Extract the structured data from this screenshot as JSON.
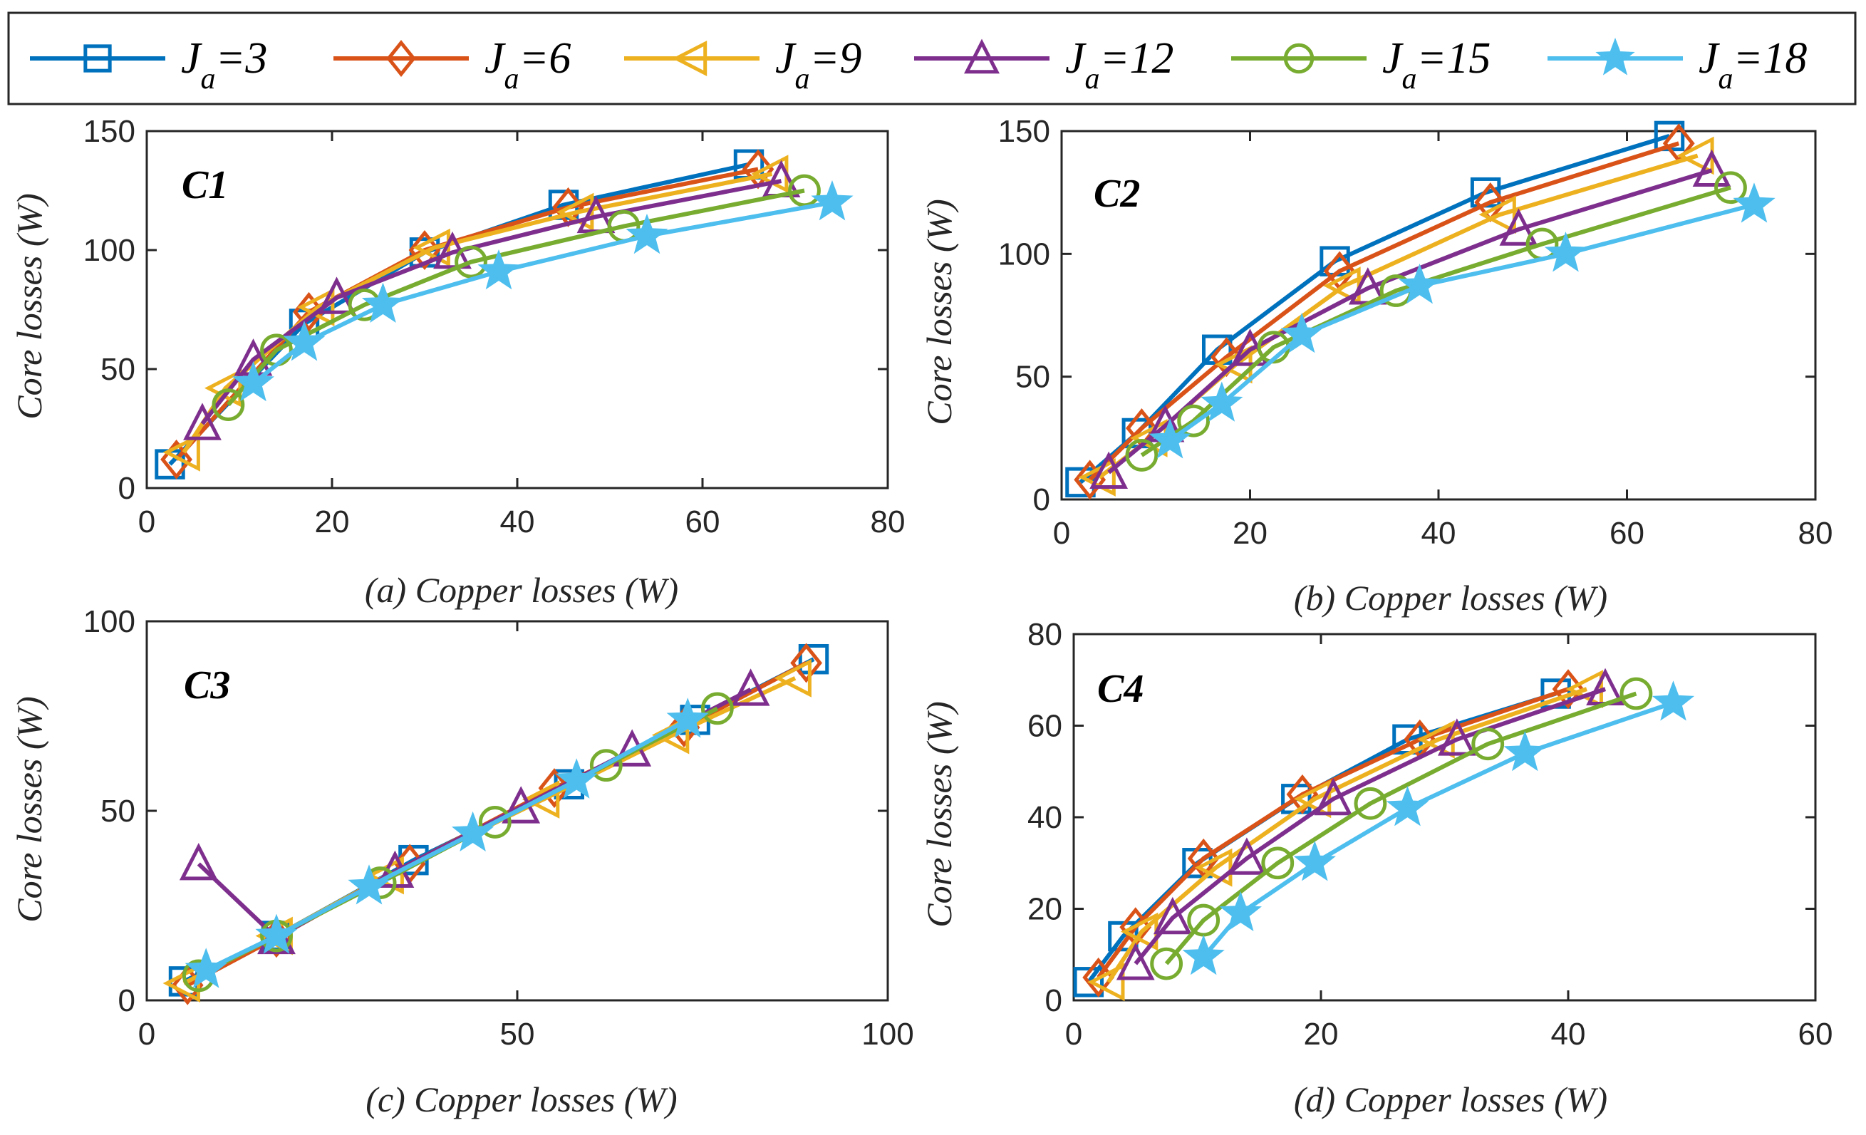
{
  "legend": {
    "items": [
      {
        "base": "J",
        "sub": "a",
        "rest": "=3",
        "color": "#0072BD",
        "marker": "square"
      },
      {
        "base": "J",
        "sub": "a",
        "rest": "=6",
        "color": "#D95319",
        "marker": "diamond"
      },
      {
        "base": "J",
        "sub": "a",
        "rest": "=9",
        "color": "#EDB120",
        "marker": "triangle-left"
      },
      {
        "base": "J",
        "sub": "a",
        "rest": "=12",
        "color": "#7E2F8E",
        "marker": "triangle-up"
      },
      {
        "base": "J",
        "sub": "a",
        "rest": "=15",
        "color": "#77AC30",
        "marker": "circle"
      },
      {
        "base": "J",
        "sub": "a",
        "rest": "=18",
        "color": "#4DBEEE",
        "marker": "star"
      }
    ]
  },
  "chart_data": [
    {
      "type": "line",
      "panel": "C1",
      "xlabel": "(a) Copper losses (W)",
      "ylabel": "Core losses (W)",
      "xlim": [
        0,
        80
      ],
      "ylim": [
        0,
        150
      ],
      "xticks": [
        "0",
        "20",
        "40",
        "60",
        "80"
      ],
      "yticks": [
        "0",
        "50",
        "100",
        "150"
      ],
      "series": [
        {
          "name": "Ja=3",
          "x": [
            2.5,
            17,
            30,
            45,
            65
          ],
          "y": [
            10,
            69,
            99,
            119,
            136
          ]
        },
        {
          "name": "Ja=6",
          "x": [
            3.2,
            17.5,
            30,
            45.5,
            66
          ],
          "y": [
            12,
            74,
            100,
            118,
            134
          ]
        },
        {
          "name": "Ja=9",
          "x": [
            4,
            8.5,
            18.5,
            31,
            46.5,
            67.5
          ],
          "y": [
            15,
            42,
            76,
            101,
            116,
            132
          ]
        },
        {
          "name": "Ja=12",
          "x": [
            6,
            11.5,
            20.5,
            33,
            48.5,
            68.5
          ],
          "y": [
            27,
            54,
            80,
            99,
            114,
            129
          ]
        },
        {
          "name": "Ja=15",
          "x": [
            8.8,
            14,
            23.5,
            35,
            51.5,
            71
          ],
          "y": [
            35,
            58,
            77,
            95,
            110,
            125
          ]
        },
        {
          "name": "Ja=18",
          "x": [
            11.5,
            17,
            25.5,
            38,
            54,
            74
          ],
          "y": [
            44,
            61,
            77,
            91,
            106,
            120
          ]
        }
      ]
    },
    {
      "type": "line",
      "panel": "C2",
      "xlabel": "(b) Copper losses (W)",
      "ylabel": "Core losses (W)",
      "xlim": [
        0,
        80
      ],
      "ylim": [
        0,
        150
      ],
      "xticks": [
        "0",
        "20",
        "40",
        "60",
        "80"
      ],
      "yticks": [
        "0",
        "50",
        "100",
        "150"
      ],
      "series": [
        {
          "name": "Ja=3",
          "x": [
            2,
            8,
            16.5,
            29,
            45,
            64.5
          ],
          "y": [
            7,
            27,
            61,
            97,
            125,
            148
          ]
        },
        {
          "name": "Ja=6",
          "x": [
            3,
            8.5,
            17.5,
            29.5,
            45.5,
            65.5
          ],
          "y": [
            8,
            29,
            58,
            93,
            121,
            145
          ]
        },
        {
          "name": "Ja=9",
          "x": [
            4,
            9.5,
            18.5,
            30,
            46.5,
            67.5
          ],
          "y": [
            9,
            25,
            55,
            87,
            116,
            140
          ]
        },
        {
          "name": "Ja=12",
          "x": [
            5,
            11,
            20,
            32.5,
            48.5,
            69
          ],
          "y": [
            11,
            30,
            61,
            86,
            110,
            134
          ]
        },
        {
          "name": "Ja=15",
          "x": [
            8.5,
            14,
            22.5,
            35.5,
            51,
            71
          ],
          "y": [
            18,
            32,
            62,
            85,
            104,
            127
          ]
        },
        {
          "name": "Ja=18",
          "x": [
            11.5,
            17,
            25.5,
            38,
            53.5,
            73.5
          ],
          "y": [
            24,
            39,
            67,
            87,
            100,
            120
          ]
        }
      ]
    },
    {
      "type": "line",
      "panel": "C3",
      "xlabel": "(c) Copper losses (W)",
      "ylabel": "Core losses (W)",
      "xlim": [
        0,
        100
      ],
      "ylim": [
        0,
        100
      ],
      "xticks": [
        "0",
        "50",
        "100"
      ],
      "yticks": [
        "0",
        "50",
        "100"
      ],
      "series": [
        {
          "name": "Ja=3",
          "x": [
            5,
            17.5,
            36,
            57,
            74,
            90
          ],
          "y": [
            5,
            17,
            37,
            57,
            74,
            90
          ]
        },
        {
          "name": "Ja=6",
          "x": [
            5.5,
            17.5,
            35.5,
            55,
            72.5,
            89
          ],
          "y": [
            4,
            16.5,
            36,
            56,
            72,
            89
          ]
        },
        {
          "name": "Ja=9",
          "x": [
            5,
            17.5,
            32.5,
            53.5,
            71,
            87.5
          ],
          "y": [
            4.5,
            17,
            33,
            53,
            70,
            85
          ]
        },
        {
          "name": "Ja=12",
          "x": [
            7,
            17.5,
            33.5,
            50.5,
            65.5,
            81.5
          ],
          "y": [
            36,
            16.5,
            34,
            51,
            66,
            82
          ]
        },
        {
          "name": "Ja=15",
          "x": [
            7,
            17.5,
            31.5,
            47,
            62,
            77
          ],
          "y": [
            6.5,
            17,
            31,
            47,
            62,
            77
          ]
        },
        {
          "name": "Ja=18",
          "x": [
            8,
            17.5,
            30,
            44,
            58,
            73
          ],
          "y": [
            8,
            17,
            30,
            44,
            58,
            74
          ]
        }
      ]
    },
    {
      "type": "line",
      "panel": "C4",
      "xlabel": "(d) Copper losses (W)",
      "ylabel": "Core losses (W)",
      "xlim": [
        0,
        60
      ],
      "ylim": [
        0,
        80
      ],
      "xticks": [
        "0",
        "20",
        "40",
        "60"
      ],
      "yticks": [
        "0",
        "20",
        "40",
        "60",
        "80"
      ],
      "series": [
        {
          "name": "Ja=3",
          "x": [
            1.2,
            4,
            10,
            18,
            27,
            39
          ],
          "y": [
            4,
            14,
            30,
            44,
            57,
            67
          ]
        },
        {
          "name": "Ja=6",
          "x": [
            2,
            5,
            10.5,
            18.5,
            28,
            40
          ],
          "y": [
            5,
            16,
            31,
            45,
            57,
            68
          ]
        },
        {
          "name": "Ja=9",
          "x": [
            2.8,
            5.5,
            11.5,
            19.5,
            29.5,
            41.5
          ],
          "y": [
            4,
            15,
            29,
            44,
            57,
            68
          ]
        },
        {
          "name": "Ja=12",
          "x": [
            5,
            8,
            14,
            21,
            31,
            43
          ],
          "y": [
            8,
            18,
            31,
            44,
            57,
            68
          ]
        },
        {
          "name": "Ja=15",
          "x": [
            7.5,
            10.5,
            16.5,
            24,
            33.5,
            45.5
          ],
          "y": [
            8,
            17.5,
            30,
            43,
            56,
            67
          ]
        },
        {
          "name": "Ja=18",
          "x": [
            10.5,
            13.5,
            19.5,
            27,
            36.5,
            48.5
          ],
          "y": [
            9.5,
            19,
            30,
            42,
            54,
            65
          ]
        }
      ]
    }
  ]
}
